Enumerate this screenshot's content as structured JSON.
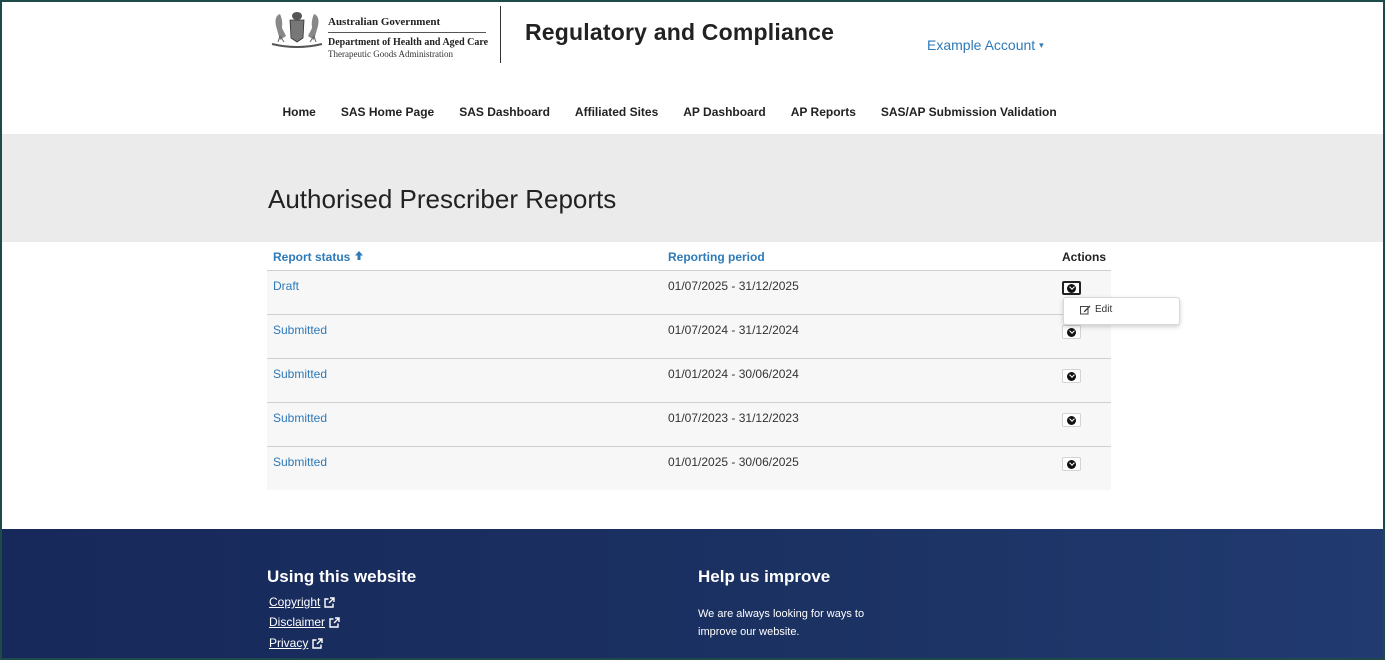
{
  "header": {
    "gov_line1": "Australian Government",
    "gov_line2": "Department of Health and Aged Care",
    "gov_line3": "Therapeutic Goods Administration",
    "site_title": "Regulatory and Compliance",
    "account_label": "Example Account",
    "account_caret": "▾"
  },
  "nav": {
    "items": [
      {
        "label": "Home"
      },
      {
        "label": "SAS Home Page"
      },
      {
        "label": "SAS Dashboard"
      },
      {
        "label": "Affiliated Sites"
      },
      {
        "label": "AP Dashboard"
      },
      {
        "label": "AP Reports",
        "active": true
      },
      {
        "label": "SAS/AP Submission Validation"
      }
    ]
  },
  "page": {
    "title": "Authorised Prescriber Reports"
  },
  "table": {
    "columns": {
      "status": "Report status",
      "period": "Reporting period",
      "actions": "Actions"
    },
    "sort_indicator": "🡑",
    "rows": [
      {
        "status": "Draft",
        "period": "01/07/2025 - 31/12/2025"
      },
      {
        "status": "Submitted",
        "period": "01/07/2024 - 31/12/2024"
      },
      {
        "status": "Submitted",
        "period": "01/01/2024 - 30/06/2024"
      },
      {
        "status": "Submitted",
        "period": "01/07/2023 - 31/12/2023"
      },
      {
        "status": "Submitted",
        "period": "01/01/2025 - 30/06/2025"
      }
    ]
  },
  "dropdown": {
    "edit_label": "Edit"
  },
  "footer": {
    "left_heading": "Using this website",
    "links": [
      {
        "label": "Copyright"
      },
      {
        "label": "Disclaimer"
      },
      {
        "label": "Privacy"
      }
    ],
    "right_heading": "Help us improve",
    "right_text": "We are always looking for ways to improve our website."
  },
  "colors": {
    "link": "#2e7ab8",
    "active_tab": "#1a8a8f",
    "band": "#ebebeb",
    "footer": "#17285a"
  },
  "icons": {
    "crest": "commonwealth-crest-icon",
    "sort": "arrow-up-icon",
    "action": "chevron-down-circle-icon",
    "edit": "edit-icon",
    "external": "external-link-icon"
  }
}
